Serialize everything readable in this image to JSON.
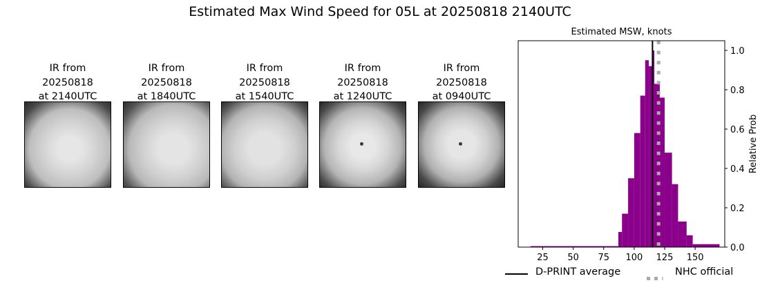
{
  "title": "Estimated Max Wind Speed for 05L at 20250818 2140UTC",
  "ir_panels": [
    {
      "label": "IR from\n20250818\nat 2140UTC",
      "eye_visible": false
    },
    {
      "label": "IR from\n20250818\nat 1840UTC",
      "eye_visible": false
    },
    {
      "label": "IR from\n20250818\nat 1540UTC",
      "eye_visible": false
    },
    {
      "label": "IR from\n20250818\nat 1240UTC",
      "eye_visible": true
    },
    {
      "label": "IR from\n20250818\nat 0940UTC",
      "eye_visible": true
    }
  ],
  "legend": {
    "dprint_label": "D-PRINT average",
    "nhc_label": "NHC official"
  },
  "colors": {
    "histogram": "#8b008b",
    "dprint_line": "#000000",
    "nhc_line": "#aaaaaa"
  },
  "chart_data": {
    "type": "bar",
    "title": "Estimated MSW, knots",
    "xlabel": "",
    "ylabel": "Relative Prob",
    "xlim": [
      5,
      175
    ],
    "ylim": [
      0,
      1.05
    ],
    "xticks": [
      25,
      50,
      75,
      100,
      125,
      150
    ],
    "yticks": [
      0.0,
      0.2,
      0.4,
      0.6,
      0.8,
      1.0
    ],
    "ytick_labels": [
      "0.0",
      "0.2",
      "0.4",
      "0.6",
      "0.8",
      "1.0"
    ],
    "y_axis_side": "right",
    "grid": false,
    "bins": [
      {
        "x0": 15,
        "x1": 87,
        "value": 0.005
      },
      {
        "x0": 87,
        "x1": 90,
        "value": 0.077
      },
      {
        "x0": 90,
        "x1": 95,
        "value": 0.17
      },
      {
        "x0": 95,
        "x1": 100,
        "value": 0.35
      },
      {
        "x0": 100,
        "x1": 105,
        "value": 0.58
      },
      {
        "x0": 105,
        "x1": 109,
        "value": 0.77
      },
      {
        "x0": 109,
        "x1": 112,
        "value": 0.95
      },
      {
        "x0": 112,
        "x1": 115,
        "value": 0.92
      },
      {
        "x0": 115,
        "x1": 116.5,
        "value": 1.0
      },
      {
        "x0": 116.5,
        "x1": 121,
        "value": 0.83
      },
      {
        "x0": 121,
        "x1": 125,
        "value": 0.76
      },
      {
        "x0": 125,
        "x1": 131,
        "value": 0.48
      },
      {
        "x0": 131,
        "x1": 136,
        "value": 0.32
      },
      {
        "x0": 136,
        "x1": 143,
        "value": 0.13
      },
      {
        "x0": 143,
        "x1": 148,
        "value": 0.06
      },
      {
        "x0": 148,
        "x1": 170,
        "value": 0.015
      }
    ],
    "vlines": [
      {
        "name": "D-PRINT average",
        "x": 115,
        "style": "solid",
        "color": "#000000"
      },
      {
        "name": "NHC official",
        "x": 120,
        "style": "dotted",
        "color": "#aaaaaa"
      }
    ],
    "legend_position": "bottom"
  }
}
